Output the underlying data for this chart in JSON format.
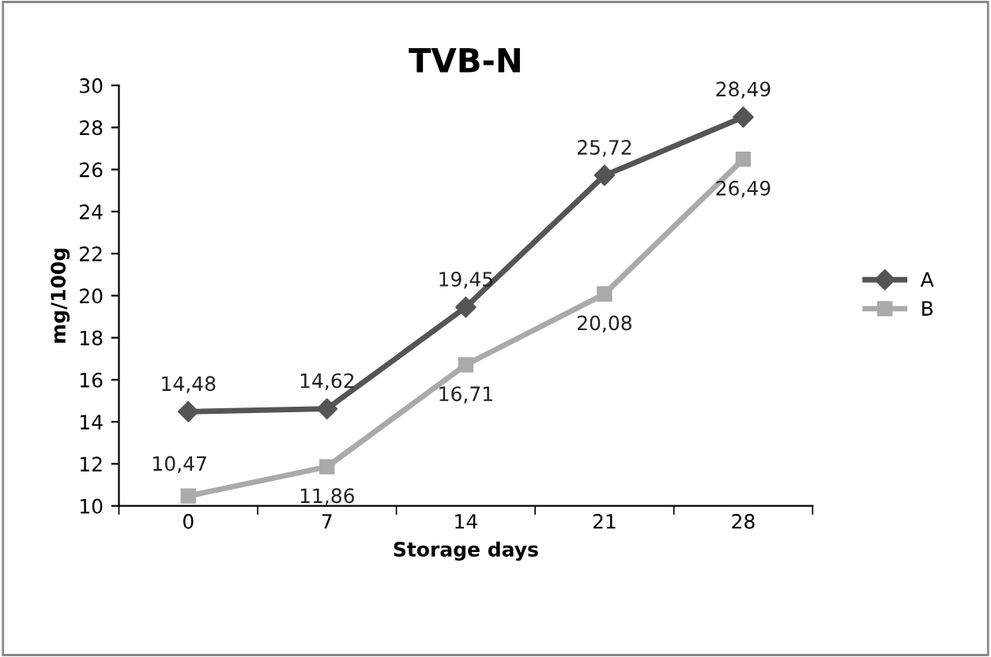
{
  "chart_data": {
    "type": "line",
    "title": "TVB-N",
    "xlabel": "Storage days",
    "ylabel": "mg/100g",
    "categories": [
      "0",
      "7",
      "14",
      "21",
      "28"
    ],
    "series": [
      {
        "name": "A",
        "color": "#555555",
        "marker": "diamond",
        "values": [
          14.48,
          14.62,
          19.45,
          25.72,
          28.49
        ],
        "value_labels": [
          "14,48",
          "14,62",
          "19,45",
          "25,72",
          "28,49"
        ]
      },
      {
        "name": "B",
        "color": "#aaaaaa",
        "marker": "square",
        "values": [
          10.47,
          11.86,
          16.71,
          20.08,
          26.49
        ],
        "value_labels": [
          "10,47",
          "11,86",
          "16,71",
          "20,08",
          "26,49"
        ]
      }
    ],
    "ylim": [
      10,
      30
    ],
    "yticks": [
      10,
      12,
      14,
      16,
      18,
      20,
      22,
      24,
      26,
      28,
      30
    ],
    "grid": false,
    "legend": "right",
    "line_style": "solid"
  }
}
